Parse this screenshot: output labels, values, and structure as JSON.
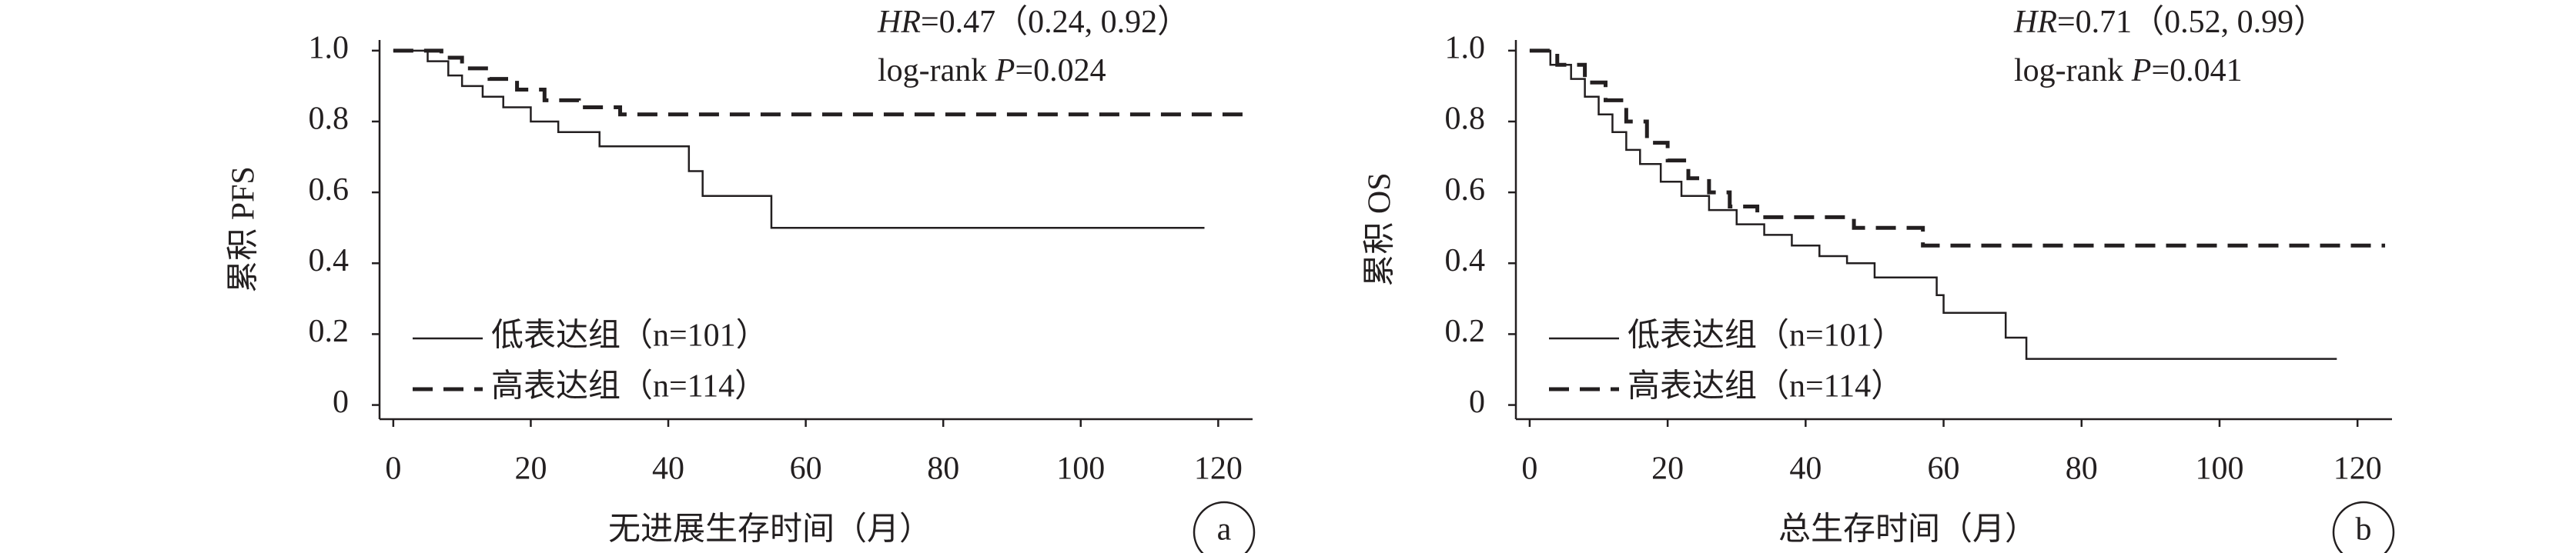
{
  "chart_data": [
    {
      "type": "line",
      "step": true,
      "panel": "a",
      "xlabel": "无进展生存时间（月）",
      "ylabel": "累积 PFS",
      "annotations": [
        [
          {
            "text": "HR",
            "italic": true
          },
          {
            "text": "=0.47（0.24, 0.92）",
            "italic": false
          }
        ],
        [
          {
            "text": "log-rank ",
            "italic": false
          },
          {
            "text": "P",
            "italic": true
          },
          {
            "text": "=0.024",
            "italic": false
          }
        ]
      ],
      "xlim": [
        -2,
        125
      ],
      "ylim": [
        -0.04,
        1.03
      ],
      "xticks": [
        0,
        20,
        40,
        60,
        80,
        100,
        120
      ],
      "yticks": [
        0,
        {
          "value": 0.2,
          "label": "0.2"
        },
        {
          "value": 0.4,
          "label": "0.4"
        },
        {
          "value": 0.6,
          "label": "0.6"
        },
        {
          "value": 0.8,
          "label": "0.8"
        },
        {
          "value": 1,
          "label": "1.0"
        }
      ],
      "series": [
        {
          "name": "低表达组（n=101）",
          "color": "#231f20",
          "dashed": false,
          "x": [
            0,
            5,
            8,
            10,
            13,
            16,
            20,
            24,
            30,
            43,
            45,
            55,
            118
          ],
          "values": [
            1,
            0.97,
            0.93,
            0.9,
            0.87,
            0.84,
            0.8,
            0.77,
            0.73,
            0.66,
            0.59,
            0.5,
            0.5
          ]
        },
        {
          "name": "高表达组（n=114）",
          "color": "#231f20",
          "dashed": true,
          "x": [
            0,
            7,
            10,
            14,
            18,
            22,
            27,
            33,
            124
          ],
          "values": [
            1,
            0.98,
            0.95,
            0.92,
            0.89,
            0.86,
            0.84,
            0.82,
            0.82
          ]
        }
      ]
    },
    {
      "type": "line",
      "step": true,
      "panel": "b",
      "xlabel": "总生存时间（月）",
      "ylabel": "累积 OS",
      "annotations": [
        [
          {
            "text": "HR",
            "italic": true
          },
          {
            "text": "=0.71（0.52, 0.99）",
            "italic": false
          }
        ],
        [
          {
            "text": "log-rank ",
            "italic": false
          },
          {
            "text": "P",
            "italic": true
          },
          {
            "text": "=0.041",
            "italic": false
          }
        ]
      ],
      "xlim": [
        -2,
        125
      ],
      "ylim": [
        -0.04,
        1.03
      ],
      "xticks": [
        0,
        20,
        40,
        60,
        80,
        100,
        120
      ],
      "yticks": [
        0,
        {
          "value": 0.2,
          "label": "0.2"
        },
        {
          "value": 0.4,
          "label": "0.4"
        },
        {
          "value": 0.6,
          "label": "0.6"
        },
        {
          "value": 0.8,
          "label": "0.8"
        },
        {
          "value": 1,
          "label": "1.0"
        }
      ],
      "series": [
        {
          "name": "低表达组（n=101）",
          "color": "#231f20",
          "dashed": false,
          "x": [
            0,
            3,
            6,
            8,
            10,
            12,
            14,
            16,
            19,
            22,
            26,
            30,
            34,
            38,
            42,
            46,
            50,
            59,
            60,
            69,
            72,
            117
          ],
          "values": [
            1,
            0.96,
            0.92,
            0.87,
            0.82,
            0.77,
            0.72,
            0.68,
            0.63,
            0.59,
            0.55,
            0.51,
            0.48,
            0.45,
            0.42,
            0.4,
            0.36,
            0.31,
            0.26,
            0.19,
            0.13,
            0.13
          ]
        },
        {
          "name": "高表达组（n=114）",
          "color": "#231f20",
          "dashed": true,
          "x": [
            0,
            4,
            8,
            11,
            14,
            17,
            20,
            23,
            26,
            29,
            33,
            47,
            57,
            124
          ],
          "values": [
            1,
            0.96,
            0.91,
            0.86,
            0.8,
            0.74,
            0.69,
            0.64,
            0.6,
            0.56,
            0.53,
            0.5,
            0.45,
            0.45
          ]
        }
      ]
    }
  ]
}
